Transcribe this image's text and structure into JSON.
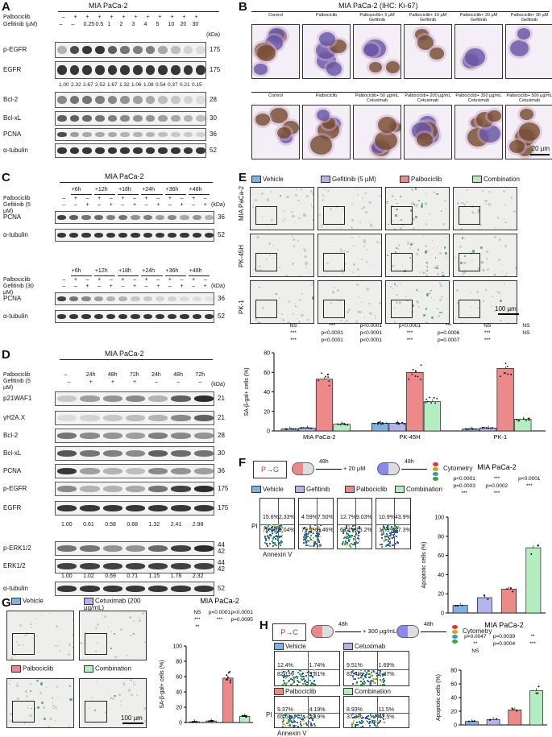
{
  "colors": {
    "vehicle": "#7fb2e5",
    "gefitinib": "#b3b3ee",
    "palbociclib": "#ec8a8a",
    "combination": "#b2eec0",
    "sa_stain": "#3a9e8a",
    "ki67": "#6b4a9e"
  },
  "panelA": {
    "label": "A",
    "title": "MIA PaCa-2",
    "row1_name": "Palbociclib",
    "row2_name": "Gefitinib (µM)",
    "row1": [
      "–",
      "+",
      "+",
      "+",
      "+",
      "+",
      "+",
      "+",
      "+",
      "+",
      "+",
      "+"
    ],
    "row2": [
      "–",
      "–",
      "0.25",
      "0.5",
      "1",
      "2",
      "3",
      "4",
      "5",
      "10",
      "20",
      "30"
    ],
    "kda_header": "(kDa)",
    "blots": [
      {
        "name": "p-EGFR",
        "kda": "175"
      },
      {
        "name": "EGFR",
        "kda": "175"
      },
      {
        "name": "Bcl-2",
        "kda": "28"
      },
      {
        "name": "Bcl-xL",
        "kda": "30"
      },
      {
        "name": "PCNA",
        "kda": "36"
      },
      {
        "name": "α-tubulin",
        "kda": "52"
      }
    ],
    "quant": [
      "1.00",
      "2.32",
      "2.67",
      "2.52",
      "1.67",
      "1.32",
      "1.06",
      "1.08",
      "0.54",
      "0.37",
      "0.21",
      "0.15"
    ]
  },
  "panelB": {
    "label": "B",
    "title": "MIA PaCa-2 (IHC: Ki-67)",
    "row1": [
      "Control",
      "Palbociclib",
      "Palbociclib+ 5 µM Gefitinib",
      "Palbociclib+ 10 µM Gefitinib",
      "Palbociclib+ 20 µM Gefitinib",
      "Palbociclib+ 30 µM Gefitinib"
    ],
    "row2": [
      "Control",
      "Palbociclib",
      "Palbociclib+ 50 µg/mL Cetuximab",
      "Palbociclib+ 200 µg/mL Cetuximab",
      "Palbociclib+ 350 µg/mL Cetuximab",
      "Palbociclib+ 500 µg/mL Cetuximab"
    ],
    "scale": "20 µm"
  },
  "panelC": {
    "label": "C",
    "title": "MIA PaCa-2",
    "times": [
      "+6h",
      "+12h",
      "+18h",
      "+24h",
      "+36h",
      "+48h"
    ],
    "row1_name": "Palbociclib",
    "gef1": "Gefitinib (5 µM)",
    "gef2": "Gefitinib (30 µM)",
    "kda_header": "(kDa)",
    "blots": [
      {
        "name": "PCNA",
        "kda": "36"
      },
      {
        "name": "α-tubulin",
        "kda": "52"
      }
    ],
    "palb": [
      "–",
      "+",
      "–",
      "+",
      "–",
      "+",
      "–",
      "+",
      "–",
      "+",
      "–",
      "+",
      "–"
    ],
    "gef": [
      "–",
      "–",
      "+",
      "–",
      "+",
      "–",
      "+",
      "–",
      "+",
      "–",
      "+",
      "–",
      "+"
    ]
  },
  "panelD": {
    "label": "D",
    "title": "MIA PaCa-2",
    "row1_name": "Palbociclib",
    "row2_name": "Gefitinib (5 µM)",
    "times": [
      "–",
      "24h",
      "48h",
      "72h",
      "24h",
      "48h",
      "72h"
    ],
    "gef": [
      "–",
      "+",
      "+",
      "+",
      "–",
      "–",
      "–"
    ],
    "kda_header": "(kDa)",
    "blots": [
      {
        "name": "p21WAF1",
        "kda": "21"
      },
      {
        "name": "γH2A.X",
        "kda": "21"
      },
      {
        "name": "Bcl-2",
        "kda": "28"
      },
      {
        "name": "Bcl-xL",
        "kda": "30"
      },
      {
        "name": "PCNA",
        "kda": "36"
      },
      {
        "name": "p-EGFR",
        "kda": "175"
      },
      {
        "name": "EGFR",
        "kda": "175"
      },
      {
        "name": "p-ERK1/2",
        "kda": "44 42"
      },
      {
        "name": "ERK1/2",
        "kda": "44 42"
      },
      {
        "name": "α-tubulin",
        "kda": "52"
      }
    ],
    "quant1": [
      "1.00",
      "0.61",
      "0.58",
      "0.68",
      "1.32",
      "2.41",
      "2.98"
    ],
    "quant2": [
      "1.00",
      "1.02",
      "0.69",
      "0.71",
      "1.15",
      "1.78",
      "2.32"
    ]
  },
  "panelE": {
    "label": "E",
    "legend": [
      "Vehicle",
      "Gefitinib (5 µM)",
      "Palbociclib",
      "Combination"
    ],
    "rows": [
      "MIA PaCa-2",
      "PK-45H",
      "PK-1"
    ],
    "scale": "100 µm"
  },
  "panelF": {
    "label": "F",
    "schema": {
      "drug1": "P",
      "drug2": "G",
      "step1": "48h",
      "step2": "+ 20 µM",
      "step3": "48h",
      "end": "Cytometry"
    },
    "legend": [
      "Vehicle",
      "Gefitinib",
      "Palbociclib",
      "Combination"
    ],
    "quadrants": [
      [
        "15.6%",
        "2.33%",
        "76.8%",
        "5.04%"
      ],
      [
        "4.59%",
        "7.50%",
        "79.5%",
        "8.46%"
      ],
      [
        "12.7%",
        "9.03%",
        "63.1%",
        "15.2%"
      ],
      [
        "10.9%",
        "43.9%",
        "17.9%",
        "27.3%"
      ]
    ],
    "xaxis": "Annexin V",
    "yaxis": "PI"
  },
  "panelG": {
    "label": "G",
    "legend": [
      "Vehicle",
      "Cetuximab (200 µg/mL)",
      "Palbociclib",
      "Combination"
    ],
    "scale": "100 µm"
  },
  "panelH": {
    "label": "H",
    "schema": {
      "drug1": "P",
      "drug2": "C",
      "step1": "48h",
      "step2": "+ 300 µg/mL",
      "step3": "48h",
      "end": "Cytometry"
    },
    "legend": [
      "Vehicle",
      "Cetuximab",
      "Palbociclib",
      "Combination"
    ],
    "quadrants": [
      [
        "12.4%",
        "1.74%",
        "82.1%",
        "3.81%"
      ],
      [
        "9.51%",
        "1.69%",
        "82.4%",
        "6.37%"
      ],
      [
        "9.37%",
        "4.19%",
        "65.6%",
        "20.9%"
      ],
      [
        "8.93%",
        "11.5%",
        "37.3%",
        "42.5%"
      ]
    ],
    "xaxis": "Annexin V",
    "yaxis": "PI"
  },
  "chart_data": [
    {
      "type": "bar",
      "title": "",
      "categories": [
        "MIA PaCa-2",
        "PK-45H",
        "PK-1"
      ],
      "series": [
        {
          "name": "Vehicle",
          "values": [
            2,
            8,
            2
          ]
        },
        {
          "name": "Gefitinib (5 µM)",
          "values": [
            3,
            8,
            3
          ]
        },
        {
          "name": "Palbociclib",
          "values": [
            53,
            60,
            64
          ]
        },
        {
          "name": "Combination",
          "values": [
            7,
            30,
            12
          ]
        }
      ],
      "ylabel": "SA-β-gal+ cells (%)",
      "ylim": [
        0,
        80
      ],
      "yticks": [
        0,
        20,
        40,
        60,
        80
      ],
      "annotations": [
        "NS",
        "***",
        "p<0.0001",
        "p<0.0001",
        "***",
        "NS",
        "NS",
        "***",
        "p<0.0001",
        "p<0.0001",
        "***",
        "p=0.0006",
        "***",
        "NS",
        "***",
        "p<0.0001",
        "p<0.0001",
        "***",
        "p=0.0007",
        "***"
      ]
    },
    {
      "type": "bar",
      "title": "MIA PaCa-2",
      "categories": [
        "Vehicle",
        "Gefitinib",
        "Palbociclib",
        "Combination"
      ],
      "values": [
        8,
        16,
        25,
        68
      ],
      "ylabel": "Apoptotic cells (%)",
      "ylim": [
        0,
        100
      ],
      "yticks": [
        0,
        20,
        40,
        60,
        80,
        100
      ],
      "annotations": [
        "p<0.0001",
        "***",
        "p<0.0001",
        "p=0.0003",
        "p=0.0002",
        "***",
        "***",
        "***"
      ]
    },
    {
      "type": "bar",
      "title": "MIA PaCa-2",
      "categories": [
        "Vehicle",
        "Cetuximab",
        "Palbociclib",
        "Combination"
      ],
      "values": [
        1,
        2,
        58,
        8
      ],
      "ylabel": "SA-β-gal+ cells (%)",
      "ylim": [
        0,
        100
      ],
      "yticks": [
        0,
        20,
        40,
        60,
        80,
        100
      ],
      "annotations": [
        "NS",
        "p<0.0001",
        "p<0.0001",
        "***",
        "***",
        "p=0.0095",
        "**"
      ]
    },
    {
      "type": "bar",
      "title": "MIA PaCa-2",
      "categories": [
        "Vehicle",
        "Cetuximab",
        "Palbociclib",
        "Combination"
      ],
      "values": [
        5,
        8,
        22,
        50
      ],
      "ylabel": "Apoptotic cells (%)",
      "ylim": [
        0,
        80
      ],
      "yticks": [
        0,
        20,
        40,
        60,
        80
      ],
      "annotations": [
        "p=0.0047",
        "p=0.0039",
        "**",
        "**",
        "p=0.0004",
        "***",
        "NS"
      ]
    }
  ]
}
